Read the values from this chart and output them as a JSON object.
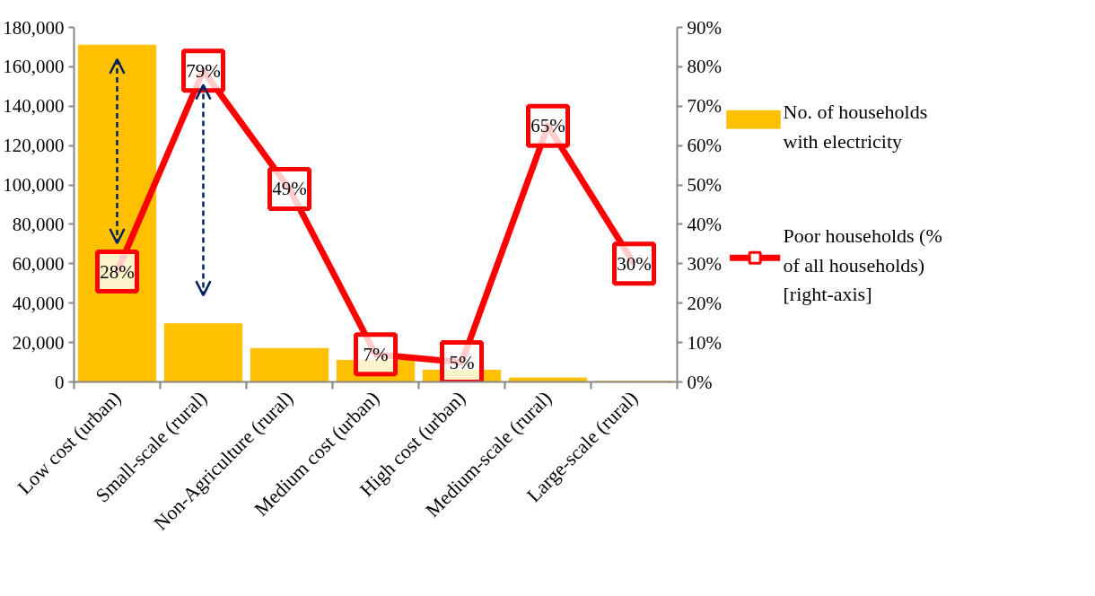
{
  "chart_data": {
    "type": "bar",
    "categories": [
      "Low cost (urban)",
      "Small-scale (rural)",
      "Non-Agriculture (rural)",
      "Medium cost (urban)",
      "High cost (urban)",
      "Medium-scale (rural)",
      "Large-scale (rural)"
    ],
    "series": [
      {
        "name": "No. of households with electricity",
        "color": "#ffc000",
        "values": [
          171000,
          29500,
          17000,
          11000,
          6000,
          2000,
          300
        ]
      },
      {
        "name": "Poor households (% of all households) [right-axis]",
        "type": "line",
        "axis": "y2",
        "color": "#ff0000",
        "marker": "square",
        "values": [
          28,
          79,
          49,
          7,
          5,
          65,
          30
        ],
        "value_labels": [
          "28%",
          "79%",
          "49%",
          "7%",
          "5%",
          "65%",
          "30%"
        ]
      }
    ],
    "ylim": [
      0,
      180000
    ],
    "yticks": [
      {
        "value": 0,
        "label": "0"
      },
      {
        "value": 20000,
        "label": "20,000"
      },
      {
        "value": 40000,
        "label": "40,000"
      },
      {
        "value": 60000,
        "label": "60,000"
      },
      {
        "value": 80000,
        "label": "80,000"
      },
      {
        "value": 100000,
        "label": "100,000"
      },
      {
        "value": 120000,
        "label": "120,000"
      },
      {
        "value": 140000,
        "label": "140,000"
      },
      {
        "value": 160000,
        "label": "160,000"
      },
      {
        "value": 180000,
        "label": "180,000"
      }
    ],
    "y2lim": [
      0,
      90
    ],
    "y2ticks": [
      {
        "value": 0,
        "label": "0%"
      },
      {
        "value": 10,
        "label": "10%"
      },
      {
        "value": 20,
        "label": "20%"
      },
      {
        "value": 30,
        "label": "30%"
      },
      {
        "value": 40,
        "label": "40%"
      },
      {
        "value": 50,
        "label": "50%"
      },
      {
        "value": 60,
        "label": "60%"
      },
      {
        "value": 70,
        "label": "70%"
      },
      {
        "value": 80,
        "label": "80%"
      },
      {
        "value": 90,
        "label": "90%"
      }
    ],
    "grid": false,
    "legend": "right"
  }
}
